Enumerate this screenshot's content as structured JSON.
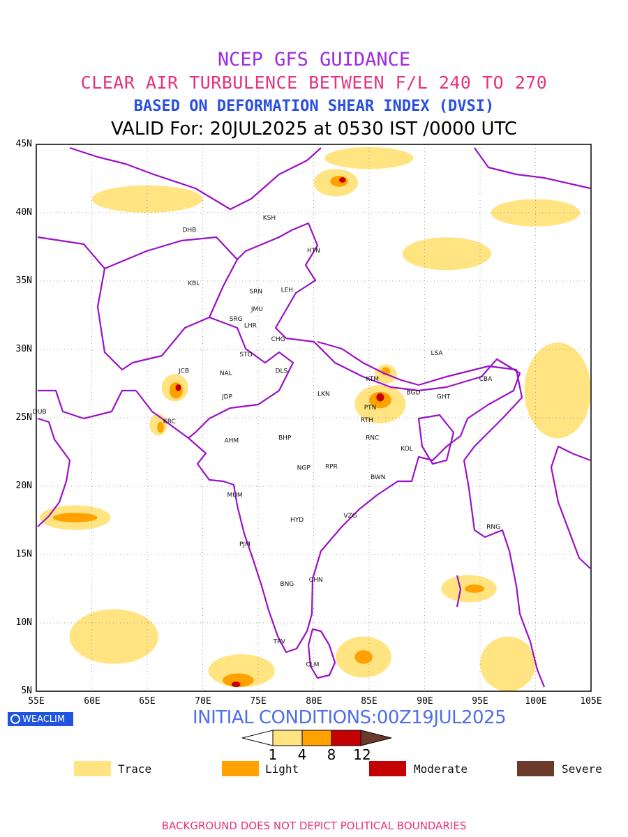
{
  "titles": {
    "line1": "NCEP GFS GUIDANCE",
    "line2": "CLEAR AIR TURBULENCE BETWEEN F/L 240 TO 270",
    "line3": "BASED ON DEFORMATION SHEAR INDEX (DVSI)",
    "line4": "VALID For: 20JUL2025 at 0530 IST /0000 UTC"
  },
  "axes": {
    "lat_ticks": [
      "45N",
      "40N",
      "35N",
      "30N",
      "25N",
      "20N",
      "15N",
      "10N",
      "5N"
    ],
    "lon_ticks": [
      "55E",
      "60E",
      "65E",
      "70E",
      "75E",
      "80E",
      "85E",
      "90E",
      "95E",
      "100E",
      "105E"
    ]
  },
  "stations": [
    {
      "code": "KSH",
      "lon": 76.0,
      "lat": 39.5
    },
    {
      "code": "DHB",
      "lon": 68.8,
      "lat": 38.6
    },
    {
      "code": "HTN",
      "lon": 80.0,
      "lat": 37.1
    },
    {
      "code": "KBL",
      "lon": 69.2,
      "lat": 34.7
    },
    {
      "code": "SRN",
      "lon": 74.8,
      "lat": 34.1
    },
    {
      "code": "LEH",
      "lon": 77.6,
      "lat": 34.2
    },
    {
      "code": "JMU",
      "lon": 74.9,
      "lat": 32.8
    },
    {
      "code": "SRG",
      "lon": 73.0,
      "lat": 32.1
    },
    {
      "code": "LHR",
      "lon": 74.3,
      "lat": 31.6
    },
    {
      "code": "CHG",
      "lon": 76.8,
      "lat": 30.6
    },
    {
      "code": "STG",
      "lon": 73.9,
      "lat": 29.5
    },
    {
      "code": "JCB",
      "lon": 68.3,
      "lat": 28.3
    },
    {
      "code": "NAL",
      "lon": 72.1,
      "lat": 28.1
    },
    {
      "code": "DLS",
      "lon": 77.1,
      "lat": 28.3
    },
    {
      "code": "LSA",
      "lon": 91.1,
      "lat": 29.6
    },
    {
      "code": "KTM",
      "lon": 85.3,
      "lat": 27.7
    },
    {
      "code": "BGD",
      "lon": 89.0,
      "lat": 26.7
    },
    {
      "code": "CBA",
      "lon": 95.5,
      "lat": 27.7
    },
    {
      "code": "GHT",
      "lon": 91.7,
      "lat": 26.4
    },
    {
      "code": "LKN",
      "lon": 80.9,
      "lat": 26.6
    },
    {
      "code": "JDP",
      "lon": 72.2,
      "lat": 26.4
    },
    {
      "code": "PTN",
      "lon": 85.1,
      "lat": 25.6
    },
    {
      "code": "DUB",
      "lon": 55.3,
      "lat": 25.3
    },
    {
      "code": "KRC",
      "lon": 67.0,
      "lat": 24.6
    },
    {
      "code": "RTH",
      "lon": 84.8,
      "lat": 24.7
    },
    {
      "code": "BHP",
      "lon": 77.4,
      "lat": 23.4
    },
    {
      "code": "AHM",
      "lon": 72.6,
      "lat": 23.2
    },
    {
      "code": "RNC",
      "lon": 85.3,
      "lat": 23.4
    },
    {
      "code": "KOL",
      "lon": 88.4,
      "lat": 22.6
    },
    {
      "code": "NGP",
      "lon": 79.1,
      "lat": 21.2
    },
    {
      "code": "RPR",
      "lon": 81.6,
      "lat": 21.3
    },
    {
      "code": "BWN",
      "lon": 85.8,
      "lat": 20.5
    },
    {
      "code": "MUM",
      "lon": 72.9,
      "lat": 19.2
    },
    {
      "code": "HYD",
      "lon": 78.5,
      "lat": 17.4
    },
    {
      "code": "VZG",
      "lon": 83.3,
      "lat": 17.7
    },
    {
      "code": "RNG",
      "lon": 96.2,
      "lat": 16.9
    },
    {
      "code": "PJM",
      "lon": 73.8,
      "lat": 15.6
    },
    {
      "code": "CHN",
      "lon": 80.2,
      "lat": 13.0
    },
    {
      "code": "BNG",
      "lon": 77.6,
      "lat": 12.7
    },
    {
      "code": "TRV",
      "lon": 76.9,
      "lat": 8.5
    },
    {
      "code": "CLM",
      "lon": 79.9,
      "lat": 6.8
    }
  ],
  "turbulence_regions": [
    {
      "level": 1,
      "lon": 67.5,
      "lat": 27.2,
      "rx": 1.2,
      "ry": 1.0
    },
    {
      "level": 2,
      "lon": 67.6,
      "lat": 27.0,
      "rx": 0.6,
      "ry": 0.6
    },
    {
      "level": 3,
      "lon": 67.8,
      "lat": 27.2,
      "rx": 0.25,
      "ry": 0.25
    },
    {
      "level": 1,
      "lon": 86.0,
      "lat": 26.0,
      "rx": 2.3,
      "ry": 1.4
    },
    {
      "level": 2,
      "lon": 86.0,
      "lat": 26.3,
      "rx": 1.0,
      "ry": 0.6
    },
    {
      "level": 3,
      "lon": 86.0,
      "lat": 26.5,
      "rx": 0.35,
      "ry": 0.3
    },
    {
      "level": 1,
      "lon": 86.5,
      "lat": 28.2,
      "rx": 1.0,
      "ry": 0.7
    },
    {
      "level": 2,
      "lon": 86.5,
      "lat": 28.4,
      "rx": 0.4,
      "ry": 0.3
    },
    {
      "level": 1,
      "lon": 82.0,
      "lat": 42.2,
      "rx": 2.0,
      "ry": 1.0
    },
    {
      "level": 2,
      "lon": 82.3,
      "lat": 42.3,
      "rx": 0.8,
      "ry": 0.4
    },
    {
      "level": 3,
      "lon": 82.6,
      "lat": 42.4,
      "rx": 0.3,
      "ry": 0.2
    },
    {
      "level": 1,
      "lon": 58.5,
      "lat": 17.7,
      "rx": 3.2,
      "ry": 0.9
    },
    {
      "level": 2,
      "lon": 58.5,
      "lat": 17.7,
      "rx": 2.0,
      "ry": 0.35
    },
    {
      "level": 1,
      "lon": 73.5,
      "lat": 6.5,
      "rx": 3.0,
      "ry": 1.2
    },
    {
      "level": 2,
      "lon": 73.2,
      "lat": 5.8,
      "rx": 1.4,
      "ry": 0.5
    },
    {
      "level": 3,
      "lon": 73.0,
      "lat": 5.5,
      "rx": 0.4,
      "ry": 0.2
    },
    {
      "level": 1,
      "lon": 84.5,
      "lat": 7.5,
      "rx": 2.5,
      "ry": 1.5
    },
    {
      "level": 2,
      "lon": 84.5,
      "lat": 7.5,
      "rx": 0.8,
      "ry": 0.5
    },
    {
      "level": 1,
      "lon": 94.0,
      "lat": 12.5,
      "rx": 2.5,
      "ry": 1.0
    },
    {
      "level": 2,
      "lon": 94.5,
      "lat": 12.5,
      "rx": 0.9,
      "ry": 0.3
    },
    {
      "level": 1,
      "lon": 66.0,
      "lat": 24.5,
      "rx": 0.8,
      "ry": 0.8
    },
    {
      "level": 2,
      "lon": 66.2,
      "lat": 24.3,
      "rx": 0.3,
      "ry": 0.4
    },
    {
      "level": 1,
      "lon": 100.0,
      "lat": 40.0,
      "rx": 4.0,
      "ry": 1.0
    },
    {
      "level": 1,
      "lon": 85.0,
      "lat": 44.0,
      "rx": 4.0,
      "ry": 0.8
    },
    {
      "level": 1,
      "lon": 65.0,
      "lat": 41.0,
      "rx": 5.0,
      "ry": 1.0
    },
    {
      "level": 1,
      "lon": 102.0,
      "lat": 27.0,
      "rx": 3.0,
      "ry": 3.5
    },
    {
      "level": 1,
      "lon": 62.0,
      "lat": 9.0,
      "rx": 4.0,
      "ry": 2.0
    },
    {
      "level": 1,
      "lon": 97.5,
      "lat": 7.0,
      "rx": 2.5,
      "ry": 2.0
    },
    {
      "level": 1,
      "lon": 92.0,
      "lat": 37.0,
      "rx": 4.0,
      "ry": 1.2
    }
  ],
  "initial_conditions": "INITIAL CONDITIONS:00Z19JUL2025",
  "logo_text": "WEACLIM",
  "colorbar": {
    "ticks": [
      "1",
      "4",
      "8",
      "12"
    ],
    "colors": [
      "#ffffff",
      "#ffe481",
      "#ffa200",
      "#c40000",
      "#6b3a2a"
    ]
  },
  "legend": [
    {
      "label": "Trace",
      "color": "#ffe481"
    },
    {
      "label": "Light",
      "color": "#ffa200"
    },
    {
      "label": "Moderate",
      "color": "#c40000"
    },
    {
      "label": "Severe",
      "color": "#6b3a2a"
    }
  ],
  "footer": "BACKGROUND DOES NOT DEPICT POLITICAL BOUNDARIES",
  "boundary_color": "#9b10c8",
  "grid_color": "#a0a0a0"
}
